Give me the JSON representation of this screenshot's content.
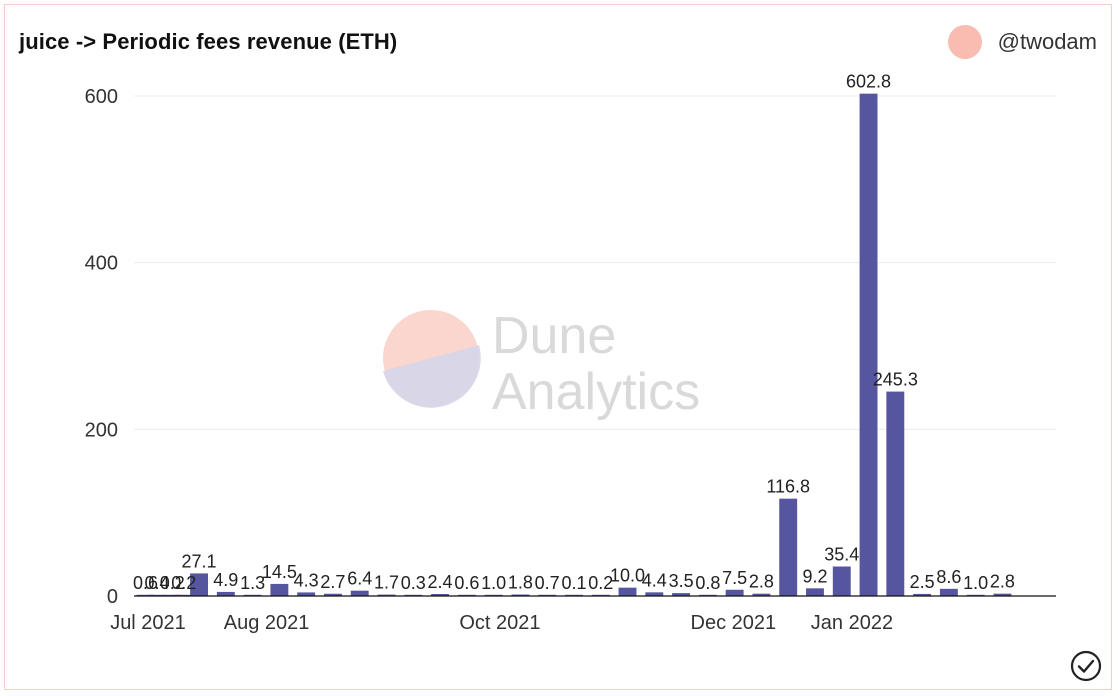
{
  "header": {
    "title": "juice -> Periodic fees revenue (ETH)",
    "author": "@twodam"
  },
  "watermark": {
    "line1": "Dune",
    "line2": "Analytics"
  },
  "colors": {
    "bar": "#5656a0",
    "grid": "#ececec",
    "axis": "#111111",
    "accent": "#f9bcb1"
  },
  "chart_data": {
    "type": "bar",
    "title": "juice -> Periodic fees revenue (ETH)",
    "xlabel": "",
    "ylabel": "",
    "ylim": [
      0,
      600
    ],
    "yticks": [
      0,
      200,
      400,
      600
    ],
    "grid": true,
    "x_range": [
      "2021-07-01",
      "2022-02-27"
    ],
    "xticks": [
      {
        "label": "Jul 2021",
        "date": "2021-07-01"
      },
      {
        "label": "Aug 2021",
        "date": "2021-08-01"
      },
      {
        "label": "Oct 2021",
        "date": "2021-10-01"
      },
      {
        "label": "Dec 2021",
        "date": "2021-12-01"
      },
      {
        "label": "Jan 2022",
        "date": "2022-01-01"
      }
    ],
    "bar_width_days": 6,
    "series": [
      {
        "name": "revenue",
        "points": [
          {
            "date": "2021-07-01",
            "value": 0.6,
            "label": "0.6"
          },
          {
            "date": "2021-07-04",
            "value": 0.4,
            "label": "0.4"
          },
          {
            "date": "2021-07-08",
            "value": 0.2,
            "label": "0.2"
          },
          {
            "date": "2021-07-11",
            "value": 0.2,
            "label": "0.2"
          },
          {
            "date": "2021-07-15",
            "value": 27.1,
            "label": "27.1"
          },
          {
            "date": "2021-07-22",
            "value": 4.9,
            "label": "4.9"
          },
          {
            "date": "2021-07-29",
            "value": 1.3,
            "label": "1.3"
          },
          {
            "date": "2021-08-05",
            "value": 14.5,
            "label": "14.5"
          },
          {
            "date": "2021-08-12",
            "value": 4.3,
            "label": "4.3"
          },
          {
            "date": "2021-08-19",
            "value": 2.7,
            "label": "2.7"
          },
          {
            "date": "2021-08-26",
            "value": 6.4,
            "label": "6.4"
          },
          {
            "date": "2021-09-02",
            "value": 1.7,
            "label": "1.7"
          },
          {
            "date": "2021-09-09",
            "value": 0.3,
            "label": "0.3"
          },
          {
            "date": "2021-09-16",
            "value": 2.4,
            "label": "2.4"
          },
          {
            "date": "2021-09-23",
            "value": 0.6,
            "label": "0.6"
          },
          {
            "date": "2021-09-30",
            "value": 1.0,
            "label": "1.0"
          },
          {
            "date": "2021-10-07",
            "value": 1.8,
            "label": "1.8"
          },
          {
            "date": "2021-10-14",
            "value": 0.7,
            "label": "0.7"
          },
          {
            "date": "2021-10-21",
            "value": 0.1,
            "label": "0.1"
          },
          {
            "date": "2021-10-28",
            "value": 0.2,
            "label": "0.2"
          },
          {
            "date": "2021-11-04",
            "value": 10.0,
            "label": "10.0"
          },
          {
            "date": "2021-11-11",
            "value": 4.4,
            "label": "4.4"
          },
          {
            "date": "2021-11-18",
            "value": 3.5,
            "label": "3.5"
          },
          {
            "date": "2021-11-25",
            "value": 0.8,
            "label": "0.8"
          },
          {
            "date": "2021-12-02",
            "value": 7.5,
            "label": "7.5"
          },
          {
            "date": "2021-12-09",
            "value": 2.8,
            "label": "2.8"
          },
          {
            "date": "2021-12-16",
            "value": 116.8,
            "label": "116.8"
          },
          {
            "date": "2021-12-23",
            "value": 9.2,
            "label": "9.2"
          },
          {
            "date": "2021-12-30",
            "value": 35.4,
            "label": "35.4"
          },
          {
            "date": "2022-01-06",
            "value": 602.8,
            "label": "602.8"
          },
          {
            "date": "2022-01-13",
            "value": 245.3,
            "label": "245.3"
          },
          {
            "date": "2022-01-20",
            "value": 2.5,
            "label": "2.5"
          },
          {
            "date": "2022-01-27",
            "value": 8.6,
            "label": "8.6"
          },
          {
            "date": "2022-02-03",
            "value": 1.0,
            "label": "1.0"
          },
          {
            "date": "2022-02-10",
            "value": 2.8,
            "label": "2.8"
          }
        ]
      }
    ]
  }
}
